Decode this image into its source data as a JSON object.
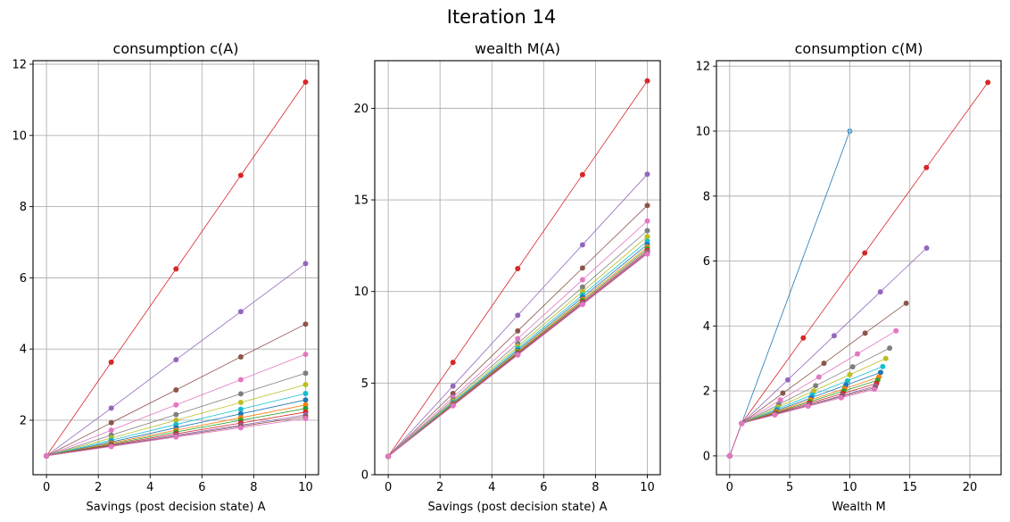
{
  "figure": {
    "suptitle": "Iteration 14"
  },
  "colors": {
    "blue": "#1f77b4",
    "orange": "#ff7f0e",
    "green": "#2ca02c",
    "red": "#d62728",
    "purple": "#9467bd",
    "brown": "#8c564b",
    "pink": "#e377c2",
    "gray": "#7f7f7f",
    "olive": "#bcbd22",
    "cyan": "#17becf",
    "grid": "#b0b0b0"
  },
  "chart_data": [
    {
      "type": "line",
      "title": "consumption c(A)",
      "xlabel": "Savings (post decision state) A",
      "ylabel": "",
      "xlim": [
        -0.52,
        10.5
      ],
      "ylim": [
        0.47,
        12.1
      ],
      "xticks": [
        0,
        2,
        4,
        6,
        8,
        10
      ],
      "yticks": [
        2,
        4,
        6,
        8,
        10,
        12
      ],
      "grid": true,
      "x": [
        0,
        2.5,
        5,
        7.5,
        10
      ],
      "series": [
        {
          "name": "series-1",
          "color": "red",
          "values": [
            1,
            3.63,
            6.25,
            8.88,
            11.5
          ]
        },
        {
          "name": "series-2",
          "color": "purple",
          "values": [
            1,
            2.34,
            3.7,
            5.05,
            6.4
          ]
        },
        {
          "name": "series-3",
          "color": "brown",
          "values": [
            1,
            1.93,
            2.85,
            3.78,
            4.7
          ]
        },
        {
          "name": "series-4",
          "color": "pink",
          "values": [
            1,
            1.72,
            2.43,
            3.14,
            3.85
          ]
        },
        {
          "name": "series-5",
          "color": "gray",
          "values": [
            1,
            1.58,
            2.16,
            2.74,
            3.32
          ]
        },
        {
          "name": "series-6",
          "color": "olive",
          "values": [
            1,
            1.5,
            2.0,
            2.5,
            3.0
          ]
        },
        {
          "name": "series-7",
          "color": "cyan",
          "values": [
            1,
            1.44,
            1.88,
            2.31,
            2.75
          ]
        },
        {
          "name": "series-8",
          "color": "blue",
          "values": [
            1,
            1.39,
            1.79,
            2.18,
            2.57
          ]
        },
        {
          "name": "series-9",
          "color": "orange",
          "values": [
            1,
            1.36,
            1.72,
            2.07,
            2.43
          ]
        },
        {
          "name": "series-10",
          "color": "green",
          "values": [
            1,
            1.33,
            1.67,
            2.0,
            2.33
          ]
        },
        {
          "name": "series-11",
          "color": "red",
          "values": [
            1,
            1.31,
            1.62,
            1.92,
            2.23
          ]
        },
        {
          "name": "series-12",
          "color": "purple",
          "values": [
            1,
            1.29,
            1.58,
            1.86,
            2.15
          ]
        },
        {
          "name": "series-13",
          "color": "brown",
          "values": [
            1,
            1.28,
            1.55,
            1.83,
            2.1
          ]
        },
        {
          "name": "series-14",
          "color": "pink",
          "values": [
            1,
            1.26,
            1.53,
            1.79,
            2.05
          ]
        }
      ]
    },
    {
      "type": "line",
      "title": "wealth M(A)",
      "xlabel": "Savings (post decision state) A",
      "ylabel": "",
      "xlim": [
        -0.52,
        10.5
      ],
      "ylim": [
        0,
        22.6
      ],
      "xticks": [
        0,
        2,
        4,
        6,
        8,
        10
      ],
      "yticks": [
        0,
        5,
        10,
        15,
        20
      ],
      "grid": true,
      "x": [
        0,
        2.5,
        5,
        7.5,
        10
      ],
      "series": [
        {
          "name": "series-1",
          "color": "red",
          "values": [
            1,
            6.13,
            11.25,
            16.38,
            21.5
          ]
        },
        {
          "name": "series-2",
          "color": "purple",
          "values": [
            1,
            4.84,
            8.7,
            12.55,
            16.4
          ]
        },
        {
          "name": "series-3",
          "color": "brown",
          "values": [
            1,
            4.43,
            7.85,
            11.28,
            14.7
          ]
        },
        {
          "name": "series-4",
          "color": "pink",
          "values": [
            1,
            4.22,
            7.43,
            10.64,
            13.85
          ]
        },
        {
          "name": "series-5",
          "color": "gray",
          "values": [
            1,
            4.08,
            7.16,
            10.24,
            13.32
          ]
        },
        {
          "name": "series-6",
          "color": "olive",
          "values": [
            1,
            4.0,
            7.0,
            10.0,
            13.0
          ]
        },
        {
          "name": "series-7",
          "color": "cyan",
          "values": [
            1,
            3.94,
            6.88,
            9.81,
            12.75
          ]
        },
        {
          "name": "series-8",
          "color": "blue",
          "values": [
            1,
            3.89,
            6.79,
            9.68,
            12.57
          ]
        },
        {
          "name": "series-9",
          "color": "orange",
          "values": [
            1,
            3.86,
            6.72,
            9.57,
            12.43
          ]
        },
        {
          "name": "series-10",
          "color": "green",
          "values": [
            1,
            3.83,
            6.67,
            9.5,
            12.33
          ]
        },
        {
          "name": "series-11",
          "color": "red",
          "values": [
            1,
            3.81,
            6.62,
            9.42,
            12.23
          ]
        },
        {
          "name": "series-12",
          "color": "purple",
          "values": [
            1,
            3.79,
            6.58,
            9.36,
            12.15
          ]
        },
        {
          "name": "series-13",
          "color": "brown",
          "values": [
            1,
            3.78,
            6.55,
            9.33,
            12.1
          ]
        },
        {
          "name": "series-14",
          "color": "pink",
          "values": [
            1,
            3.76,
            6.53,
            9.29,
            12.05
          ]
        }
      ]
    },
    {
      "type": "line",
      "title": "consumption c(M)",
      "xlabel": "Wealth M",
      "ylabel": "",
      "xlim": [
        -1.1,
        22.6
      ],
      "ylim": [
        -0.58,
        12.17
      ],
      "xticks": [
        0,
        5,
        10,
        15,
        20
      ],
      "yticks": [
        0,
        2,
        4,
        6,
        8,
        10,
        12
      ],
      "grid": true,
      "series": [
        {
          "name": "series-0",
          "color": "blue",
          "marker": "plus",
          "points": [
            [
              0,
              0
            ],
            [
              1,
              1
            ],
            [
              10,
              10
            ]
          ]
        },
        {
          "name": "series-1",
          "color": "red",
          "points": [
            [
              0,
              0
            ],
            [
              1,
              1
            ],
            [
              6.13,
              3.63
            ],
            [
              11.25,
              6.25
            ],
            [
              16.38,
              8.88
            ],
            [
              21.5,
              11.5
            ]
          ]
        },
        {
          "name": "series-2",
          "color": "purple",
          "points": [
            [
              0,
              0
            ],
            [
              1,
              1
            ],
            [
              4.84,
              2.34
            ],
            [
              8.7,
              3.7
            ],
            [
              12.55,
              5.05
            ],
            [
              16.4,
              6.4
            ]
          ]
        },
        {
          "name": "series-3",
          "color": "brown",
          "points": [
            [
              0,
              0
            ],
            [
              1,
              1
            ],
            [
              4.43,
              1.93
            ],
            [
              7.85,
              2.85
            ],
            [
              11.28,
              3.78
            ],
            [
              14.7,
              4.7
            ]
          ]
        },
        {
          "name": "series-4",
          "color": "pink",
          "points": [
            [
              0,
              0
            ],
            [
              1,
              1
            ],
            [
              4.22,
              1.72
            ],
            [
              7.43,
              2.43
            ],
            [
              10.64,
              3.14
            ],
            [
              13.85,
              3.85
            ]
          ]
        },
        {
          "name": "series-5",
          "color": "gray",
          "points": [
            [
              0,
              0
            ],
            [
              1,
              1
            ],
            [
              4.08,
              1.58
            ],
            [
              7.16,
              2.16
            ],
            [
              10.24,
              2.74
            ],
            [
              13.32,
              3.32
            ]
          ]
        },
        {
          "name": "series-6",
          "color": "olive",
          "points": [
            [
              0,
              0
            ],
            [
              1,
              1
            ],
            [
              4.0,
              1.5
            ],
            [
              7.0,
              2.0
            ],
            [
              10.0,
              2.5
            ],
            [
              13.0,
              3.0
            ]
          ]
        },
        {
          "name": "series-7",
          "color": "cyan",
          "points": [
            [
              0,
              0
            ],
            [
              1,
              1
            ],
            [
              3.94,
              1.44
            ],
            [
              6.88,
              1.88
            ],
            [
              9.81,
              2.31
            ],
            [
              12.75,
              2.75
            ]
          ]
        },
        {
          "name": "series-8",
          "color": "blue",
          "points": [
            [
              0,
              0
            ],
            [
              1,
              1
            ],
            [
              3.89,
              1.39
            ],
            [
              6.79,
              1.79
            ],
            [
              9.68,
              2.18
            ],
            [
              12.57,
              2.57
            ]
          ]
        },
        {
          "name": "series-9",
          "color": "orange",
          "points": [
            [
              0,
              0
            ],
            [
              1,
              1
            ],
            [
              3.86,
              1.36
            ],
            [
              6.72,
              1.72
            ],
            [
              9.57,
              2.07
            ],
            [
              12.43,
              2.43
            ]
          ]
        },
        {
          "name": "series-10",
          "color": "green",
          "points": [
            [
              0,
              0
            ],
            [
              1,
              1
            ],
            [
              3.83,
              1.33
            ],
            [
              6.67,
              1.67
            ],
            [
              9.5,
              2.0
            ],
            [
              12.33,
              2.33
            ]
          ]
        },
        {
          "name": "series-11",
          "color": "red",
          "points": [
            [
              0,
              0
            ],
            [
              1,
              1
            ],
            [
              3.81,
              1.31
            ],
            [
              6.62,
              1.62
            ],
            [
              9.42,
              1.92
            ],
            [
              12.23,
              2.23
            ]
          ]
        },
        {
          "name": "series-12",
          "color": "purple",
          "points": [
            [
              0,
              0
            ],
            [
              1,
              1
            ],
            [
              3.79,
              1.29
            ],
            [
              6.58,
              1.58
            ],
            [
              9.36,
              1.86
            ],
            [
              12.15,
              2.15
            ]
          ]
        },
        {
          "name": "series-13",
          "color": "brown",
          "points": [
            [
              0,
              0
            ],
            [
              1,
              1
            ],
            [
              3.78,
              1.28
            ],
            [
              6.55,
              1.55
            ],
            [
              9.33,
              1.83
            ],
            [
              12.1,
              2.1
            ]
          ]
        },
        {
          "name": "series-14",
          "color": "pink",
          "points": [
            [
              0,
              0
            ],
            [
              1,
              1
            ],
            [
              3.76,
              1.26
            ],
            [
              6.53,
              1.53
            ],
            [
              9.29,
              1.79
            ],
            [
              12.05,
              2.05
            ]
          ]
        }
      ]
    }
  ]
}
